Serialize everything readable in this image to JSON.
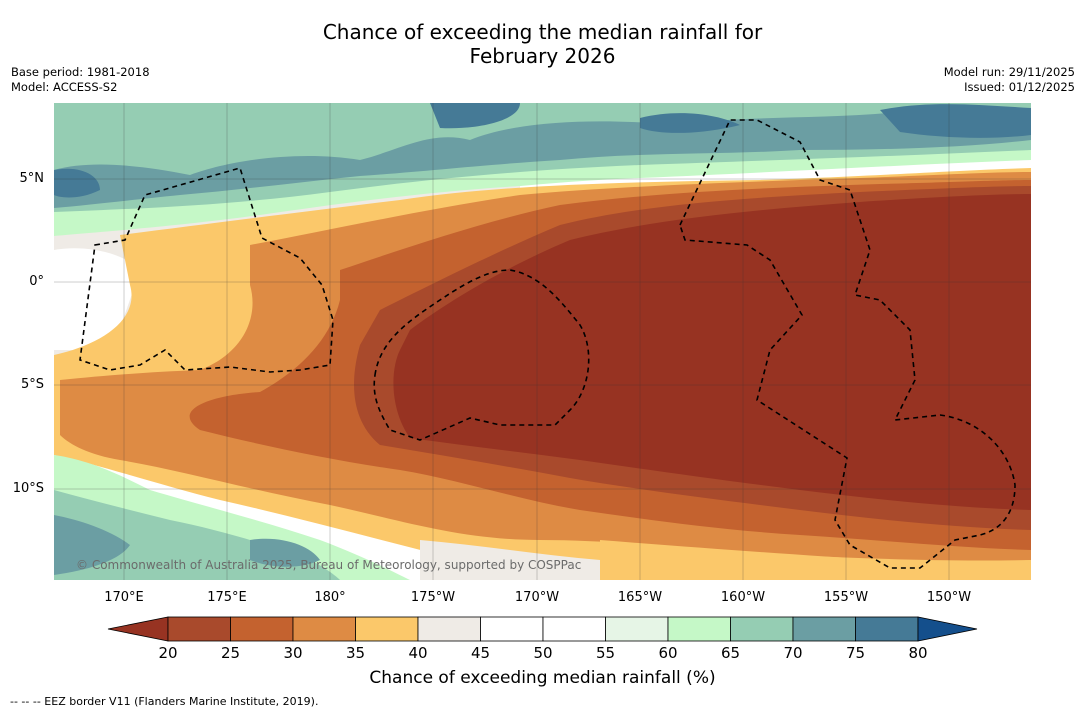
{
  "title_line1": "Chance of exceeding the median rainfall for",
  "title_line2": "February 2026",
  "base_period": "Base period: 1981-2018",
  "model": "Model: ACCESS-S2",
  "model_run": "Model run: 29/11/2025",
  "issued": "Issued: 01/12/2025",
  "credit": "© Commonwealth of Australia 2025, Bureau of Meteorology, supported by COSPPac",
  "lat_labels": [
    "5°N",
    "0°",
    "5°S",
    "10°S"
  ],
  "lon_labels": [
    "170°E",
    "175°E",
    "180°",
    "175°W",
    "170°W",
    "165°W",
    "160°W",
    "155°W",
    "150°W"
  ],
  "colorbar": {
    "ticks": [
      "20",
      "25",
      "30",
      "35",
      "40",
      "45",
      "50",
      "55",
      "60",
      "65",
      "70",
      "75",
      "80"
    ],
    "colors": [
      "#a94a2c",
      "#c4622f",
      "#de8b44",
      "#fbc86a",
      "#efebe6",
      "#ffffff",
      "#ffffff",
      "#e6f5e6",
      "#c5f8c7",
      "#95cdb3",
      "#6b9ea3",
      "#457a96"
    ],
    "under_color": "#973322",
    "over_color": "#144f8c",
    "label": "Chance of exceeding median rainfall (%)"
  },
  "footnote": "--  --  -- EEZ border V11 (Flanders Marine Institute, 2019)."
}
